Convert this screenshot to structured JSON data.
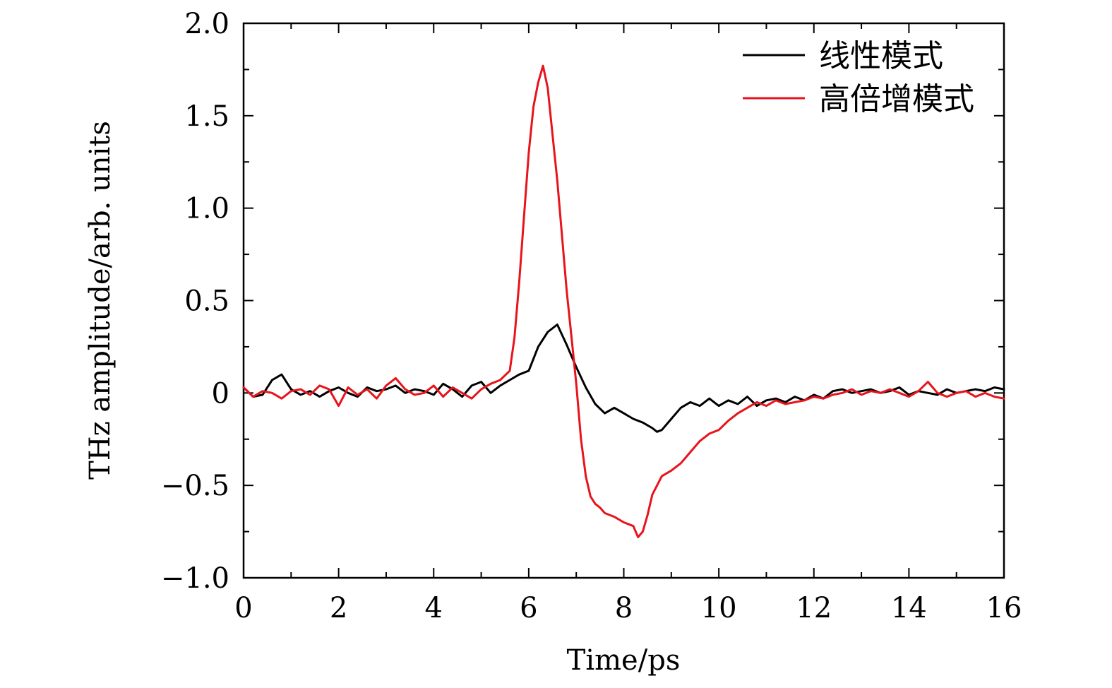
{
  "chart_data": {
    "type": "line",
    "title": "",
    "xlabel": "Time/ps",
    "ylabel": "THz amplitude/arb. units",
    "xlim": [
      0,
      16
    ],
    "ylim": [
      -1.0,
      2.0
    ],
    "xticks": [
      0,
      2,
      4,
      6,
      8,
      10,
      12,
      14,
      16
    ],
    "xtick_labels": [
      "0",
      "2",
      "4",
      "6",
      "8",
      "10",
      "12",
      "14",
      "16"
    ],
    "yticks": [
      -1.0,
      -0.5,
      0,
      0.5,
      1.0,
      1.5,
      2.0
    ],
    "ytick_labels": [
      "−1.0",
      "−0.5",
      "0",
      "0.5",
      "1.0",
      "1.5",
      "2.0"
    ],
    "legend_position": "top-right",
    "series": [
      {
        "name": "线性模式",
        "color": "#000000",
        "x": [
          0,
          0.2,
          0.4,
          0.6,
          0.8,
          1.0,
          1.2,
          1.4,
          1.6,
          1.8,
          2.0,
          2.2,
          2.4,
          2.6,
          2.8,
          3.0,
          3.2,
          3.4,
          3.6,
          3.8,
          4.0,
          4.2,
          4.4,
          4.6,
          4.8,
          5.0,
          5.2,
          5.4,
          5.6,
          5.8,
          6.0,
          6.2,
          6.4,
          6.6,
          6.8,
          7.0,
          7.2,
          7.4,
          7.6,
          7.8,
          8.0,
          8.2,
          8.4,
          8.6,
          8.7,
          8.8,
          9.0,
          9.2,
          9.4,
          9.6,
          9.8,
          10.0,
          10.2,
          10.4,
          10.6,
          10.8,
          11.0,
          11.2,
          11.4,
          11.6,
          11.8,
          12.0,
          12.2,
          12.4,
          12.6,
          12.8,
          13.0,
          13.2,
          13.4,
          13.6,
          13.8,
          14.0,
          14.2,
          14.4,
          14.6,
          14.8,
          15.0,
          15.2,
          15.4,
          15.6,
          15.8,
          16.0
        ],
        "y": [
          0.03,
          -0.02,
          -0.01,
          0.07,
          0.1,
          0.02,
          -0.01,
          0.01,
          -0.02,
          0.01,
          0.03,
          0.0,
          -0.02,
          0.03,
          0.01,
          0.02,
          0.04,
          0.0,
          0.02,
          0.01,
          -0.01,
          0.05,
          0.02,
          -0.02,
          0.04,
          0.06,
          0.0,
          0.04,
          0.07,
          0.1,
          0.12,
          0.25,
          0.33,
          0.37,
          0.26,
          0.14,
          0.03,
          -0.06,
          -0.11,
          -0.08,
          -0.11,
          -0.14,
          -0.16,
          -0.19,
          -0.21,
          -0.2,
          -0.14,
          -0.08,
          -0.05,
          -0.07,
          -0.03,
          -0.07,
          -0.04,
          -0.06,
          -0.02,
          -0.07,
          -0.04,
          -0.03,
          -0.05,
          -0.02,
          -0.04,
          -0.01,
          -0.03,
          0.01,
          0.02,
          0.0,
          0.01,
          0.02,
          0.0,
          0.01,
          0.03,
          -0.01,
          0.01,
          0.0,
          -0.01,
          0.02,
          0.0,
          0.01,
          0.02,
          0.01,
          0.03,
          0.02
        ]
      },
      {
        "name": "高倍增模式",
        "color": "#e8131b",
        "x": [
          0,
          0.2,
          0.4,
          0.6,
          0.8,
          1.0,
          1.2,
          1.4,
          1.6,
          1.8,
          2.0,
          2.2,
          2.4,
          2.6,
          2.8,
          3.0,
          3.2,
          3.4,
          3.6,
          3.8,
          4.0,
          4.2,
          4.4,
          4.6,
          4.8,
          5.0,
          5.2,
          5.4,
          5.6,
          5.7,
          5.8,
          5.9,
          6.0,
          6.1,
          6.2,
          6.3,
          6.4,
          6.5,
          6.6,
          6.7,
          6.8,
          6.9,
          7.0,
          7.1,
          7.2,
          7.3,
          7.4,
          7.5,
          7.6,
          7.8,
          8.0,
          8.2,
          8.3,
          8.4,
          8.5,
          8.6,
          8.8,
          9.0,
          9.2,
          9.4,
          9.6,
          9.8,
          10.0,
          10.2,
          10.4,
          10.6,
          10.8,
          11.0,
          11.2,
          11.4,
          11.6,
          11.8,
          12.0,
          12.2,
          12.4,
          12.6,
          12.8,
          13.0,
          13.2,
          13.4,
          13.6,
          13.8,
          14.0,
          14.2,
          14.4,
          14.6,
          14.8,
          15.0,
          15.2,
          15.4,
          15.6,
          15.8,
          16.0
        ],
        "y": [
          0.03,
          -0.02,
          0.01,
          0.0,
          -0.03,
          0.01,
          0.02,
          -0.01,
          0.04,
          0.02,
          -0.07,
          0.03,
          -0.01,
          0.02,
          -0.03,
          0.04,
          0.08,
          0.02,
          -0.01,
          0.0,
          0.04,
          -0.02,
          0.03,
          0.0,
          -0.03,
          0.02,
          0.05,
          0.07,
          0.12,
          0.3,
          0.6,
          0.95,
          1.3,
          1.55,
          1.68,
          1.77,
          1.65,
          1.4,
          1.15,
          0.85,
          0.55,
          0.3,
          0.05,
          -0.25,
          -0.45,
          -0.56,
          -0.6,
          -0.62,
          -0.65,
          -0.67,
          -0.7,
          -0.72,
          -0.78,
          -0.75,
          -0.66,
          -0.55,
          -0.45,
          -0.42,
          -0.38,
          -0.32,
          -0.26,
          -0.22,
          -0.2,
          -0.15,
          -0.11,
          -0.08,
          -0.05,
          -0.07,
          -0.04,
          -0.06,
          -0.05,
          -0.04,
          -0.02,
          -0.03,
          -0.01,
          0.0,
          0.02,
          -0.01,
          0.01,
          0.0,
          0.02,
          0.0,
          -0.02,
          0.01,
          0.06,
          0.0,
          -0.02,
          0.0,
          0.01,
          -0.02,
          0.0,
          -0.02,
          -0.03
        ]
      }
    ]
  }
}
